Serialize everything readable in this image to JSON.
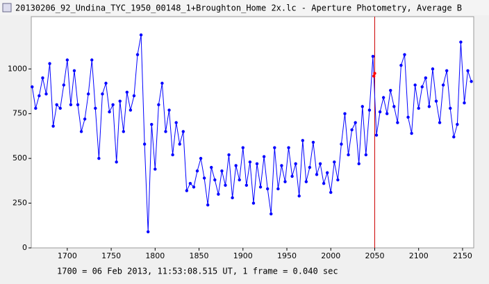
{
  "chart_data": {
    "type": "line",
    "title": "20130206_92_Undina_TYC_1950_00148_1+Broughton_Home 2x.lc - Aperture Photometry, Average B",
    "footer": "1700 = 06 Feb 2013, 11:53:08.515 UT, 1 frame = 0.040 sec",
    "xlim": [
      1659,
      2162.7
    ],
    "ylim": [
      0,
      1292
    ],
    "xticks": [
      1700,
      1750,
      1800,
      1850,
      1900,
      1950,
      2000,
      2050,
      2100,
      2150
    ],
    "yticks": [
      0,
      250,
      500,
      750,
      1000
    ],
    "vline": 2050,
    "vline_color": "#cc0000",
    "series": [
      {
        "color": "#0000ff",
        "x": [
          1660,
          1664,
          1668,
          1672,
          1676,
          1680,
          1684,
          1688,
          1692,
          1696,
          1700,
          1704,
          1708,
          1712,
          1716,
          1720,
          1724,
          1728,
          1732,
          1736,
          1740,
          1744,
          1748,
          1752,
          1756,
          1760,
          1764,
          1768,
          1772,
          1776,
          1780,
          1784,
          1788,
          1792,
          1796,
          1800,
          1804,
          1808,
          1812,
          1816,
          1820,
          1824,
          1828,
          1832,
          1836,
          1840,
          1844,
          1848,
          1852,
          1856,
          1860,
          1864,
          1868,
          1872,
          1876,
          1880,
          1884,
          1888,
          1892,
          1896,
          1900,
          1904,
          1908,
          1912,
          1916,
          1920,
          1924,
          1928,
          1932,
          1936,
          1940,
          1944,
          1948,
          1952,
          1956,
          1960,
          1964,
          1968,
          1972,
          1976,
          1980,
          1984,
          1988,
          1992,
          1996,
          2000,
          2004,
          2008,
          2012,
          2016,
          2020,
          2024,
          2028,
          2032,
          2036,
          2040,
          2044,
          2048,
          2052,
          2056,
          2060,
          2064,
          2068,
          2072,
          2076,
          2080,
          2084,
          2088,
          2092,
          2096,
          2100,
          2104,
          2108,
          2112,
          2116,
          2120,
          2124,
          2128,
          2132,
          2136,
          2140,
          2144,
          2148,
          2152,
          2156,
          2160
        ],
        "values": [
          900,
          780,
          850,
          950,
          860,
          1030,
          680,
          800,
          780,
          910,
          1050,
          800,
          990,
          800,
          650,
          720,
          860,
          1050,
          780,
          500,
          860,
          920,
          760,
          800,
          480,
          820,
          650,
          870,
          770,
          850,
          1080,
          1190,
          580,
          90,
          690,
          440,
          800,
          920,
          650,
          770,
          520,
          700,
          580,
          650,
          320,
          360,
          340,
          430,
          500,
          390,
          240,
          450,
          380,
          300,
          430,
          350,
          520,
          280,
          460,
          380,
          560,
          350,
          480,
          250,
          470,
          340,
          510,
          330,
          190,
          560,
          330,
          460,
          370,
          560,
          400,
          470,
          290,
          600,
          370,
          450,
          590,
          410,
          470,
          360,
          420,
          310,
          480,
          380,
          580,
          750,
          520,
          660,
          700,
          470,
          790,
          520,
          770,
          1070,
          630,
          760,
          840,
          750,
          880,
          790,
          700,
          1020,
          1080,
          730,
          640,
          910,
          780,
          900,
          950,
          790,
          1000,
          820,
          700,
          910,
          990,
          780,
          620,
          690,
          1150,
          810,
          990,
          930
        ]
      },
      {
        "color": "#ff0000",
        "x": [
          2049,
          2050
        ],
        "values": [
          960,
          975
        ]
      }
    ]
  }
}
